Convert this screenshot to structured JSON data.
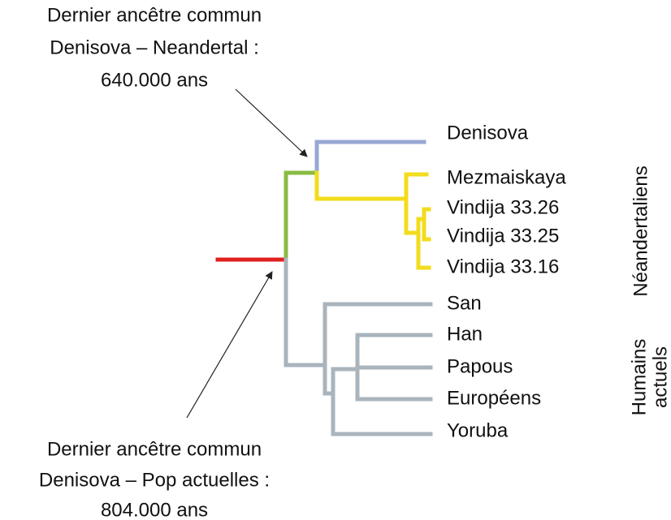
{
  "annotations": [
    {
      "lines": [
        "Dernier ancêtre commun",
        "Denisova – Neandertal :",
        "640.000 ans"
      ]
    },
    {
      "lines": [
        "Dernier ancêtre commun",
        "Denisova – Pop actuelles :",
        "804.000 ans"
      ]
    }
  ],
  "leaves": [
    "Denisova",
    "Mezmaiskaya",
    "Vindija 33.26",
    "Vindija 33.25",
    "Vindija 33.16",
    "San",
    "Han",
    "Papous",
    "Européens",
    "Yoruba"
  ],
  "groups": [
    {
      "lines": [
        "Néandertaliens"
      ]
    },
    {
      "lines": [
        "Humains",
        "actuels"
      ]
    }
  ]
}
